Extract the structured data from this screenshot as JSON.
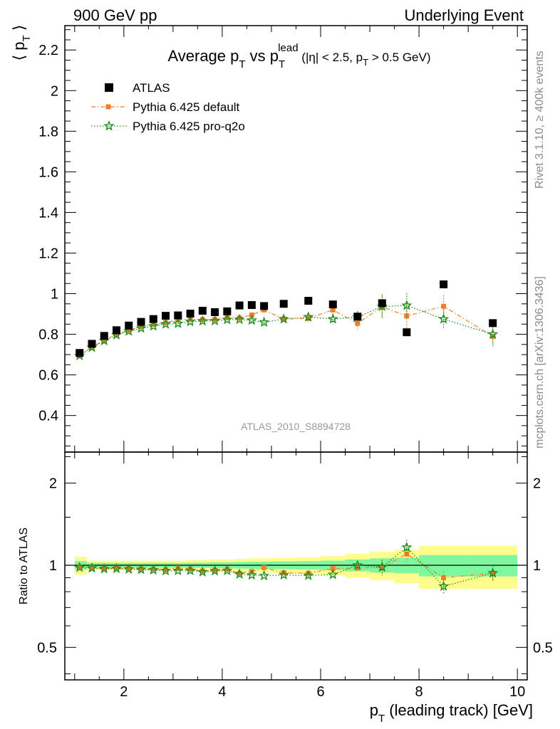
{
  "header": {
    "left": "900 GeV pp",
    "right": "Underlying Event"
  },
  "side_labels": {
    "rivet": "Rivet 3.1.10, ≥ 400k events",
    "mcplots": "mcplots.cern.ch [arXiv:1306.3436]"
  },
  "analysis_id": "ATLAS_2010_S8894728",
  "colors": {
    "atlas": "#000000",
    "default": "#f07f2d",
    "proq2o": "#1e8c1e",
    "band_inner": "#7ef79f",
    "band_outer": "#fffc8e"
  },
  "chart_data": [
    {
      "type": "scatter",
      "title_parts": {
        "pre": "Average p",
        "sub1": "T",
        "mid": " vs p",
        "sub2": "T",
        "sup2": "lead",
        "cut": " (|η| < 2.5, p",
        "cut_sub": "T",
        "cut_post": " > 0.5 GeV)"
      },
      "ylabel": {
        "pre": "⟨ p",
        "sub": "T",
        "post": " ⟩"
      },
      "xlim": [
        0.8,
        10.2
      ],
      "ylim": [
        0.22,
        2.32
      ],
      "yticks": [
        0.4,
        0.6,
        0.8,
        1,
        1.2,
        1.4,
        1.6,
        1.8,
        2,
        2.2
      ],
      "ytick_labels": [
        "0.4",
        "0.6",
        "0.8",
        "1",
        "1.2",
        "1.4",
        "1.6",
        "1.8",
        "2",
        "2.2"
      ],
      "legend_position": "top-left",
      "x": [
        1.1,
        1.35,
        1.6,
        1.85,
        2.1,
        2.35,
        2.6,
        2.85,
        3.1,
        3.35,
        3.6,
        3.85,
        4.1,
        4.35,
        4.6,
        4.85,
        5.25,
        5.75,
        6.25,
        6.75,
        7.25,
        7.75,
        8.5,
        9.5
      ],
      "series": [
        {
          "name": "ATLAS",
          "marker": "square",
          "values": [
            0.708,
            0.753,
            0.792,
            0.82,
            0.843,
            0.861,
            0.875,
            0.891,
            0.893,
            0.902,
            0.916,
            0.909,
            0.913,
            0.942,
            0.944,
            0.939,
            0.95,
            0.965,
            0.947,
            0.887,
            0.953,
            0.81,
            1.046,
            0.855
          ]
        },
        {
          "name": "Pythia 6.425 default",
          "marker": "square-small",
          "values": [
            0.698,
            0.738,
            0.77,
            0.8,
            0.82,
            0.837,
            0.849,
            0.857,
            0.872,
            0.874,
            0.872,
            0.872,
            0.882,
            0.88,
            0.895,
            0.92,
            0.875,
            0.878,
            0.92,
            0.854,
            0.935,
            0.89,
            0.938,
            0.79
          ],
          "errors": [
            0.003,
            0.003,
            0.003,
            0.003,
            0.004,
            0.004,
            0.004,
            0.004,
            0.005,
            0.005,
            0.005,
            0.006,
            0.006,
            0.007,
            0.008,
            0.009,
            0.01,
            0.015,
            0.025,
            0.03,
            0.055,
            0.06,
            0.055,
            0.055
          ]
        },
        {
          "name": "Pythia 6.425 pro-q2o",
          "marker": "star",
          "values": [
            0.695,
            0.735,
            0.768,
            0.797,
            0.815,
            0.83,
            0.84,
            0.85,
            0.853,
            0.862,
            0.865,
            0.866,
            0.872,
            0.873,
            0.869,
            0.859,
            0.875,
            0.885,
            0.875,
            0.885,
            0.937,
            0.942,
            0.875,
            0.8
          ],
          "errors": [
            0.003,
            0.003,
            0.003,
            0.003,
            0.004,
            0.004,
            0.004,
            0.004,
            0.005,
            0.005,
            0.005,
            0.006,
            0.006,
            0.007,
            0.008,
            0.009,
            0.01,
            0.015,
            0.025,
            0.03,
            0.06,
            0.06,
            0.05,
            0.05
          ]
        }
      ]
    },
    {
      "type": "scatter",
      "ylabel": "Ratio to ATLAS",
      "xlabel": {
        "pre": "p",
        "sub": "T",
        "post": " (leading track) [GeV]"
      },
      "xlim": [
        0.8,
        10.2
      ],
      "ylim": [
        0.38,
        2.6
      ],
      "scale": "log",
      "yticks": [
        0.5,
        1,
        2
      ],
      "ytick_labels": [
        "0.5",
        "1",
        "2"
      ],
      "xticks": [
        2,
        4,
        6,
        8,
        10
      ],
      "xtick_labels": [
        "2",
        "4",
        "6",
        "8",
        "10"
      ],
      "x_edges": [
        1.0,
        1.25,
        1.5,
        1.75,
        2.0,
        2.25,
        2.5,
        2.75,
        3.0,
        3.25,
        3.5,
        3.75,
        4.0,
        4.25,
        4.5,
        4.75,
        5.0,
        5.5,
        6.0,
        6.5,
        7.0,
        7.5,
        8.0,
        9.0,
        10.0
      ],
      "band_inner": [
        0.035,
        0.02,
        0.02,
        0.02,
        0.02,
        0.02,
        0.02,
        0.02,
        0.02,
        0.022,
        0.022,
        0.025,
        0.025,
        0.028,
        0.03,
        0.03,
        0.033,
        0.035,
        0.04,
        0.05,
        0.06,
        0.065,
        0.09,
        0.09
      ],
      "band_outer": [
        0.075,
        0.04,
        0.04,
        0.04,
        0.04,
        0.04,
        0.04,
        0.04,
        0.04,
        0.045,
        0.045,
        0.05,
        0.05,
        0.055,
        0.06,
        0.06,
        0.065,
        0.07,
        0.08,
        0.1,
        0.12,
        0.14,
        0.18,
        0.18
      ],
      "series": [
        {
          "name": "Pythia 6.425 default",
          "values": [
            0.987,
            0.98,
            0.975,
            0.974,
            0.972,
            0.969,
            0.969,
            0.963,
            0.978,
            0.968,
            0.952,
            0.959,
            0.966,
            0.934,
            0.948,
            0.98,
            0.938,
            0.935,
            0.972,
            0.978,
            0.98,
            1.1,
            0.9,
            0.935
          ],
          "errors": [
            0.004,
            0.004,
            0.004,
            0.004,
            0.005,
            0.005,
            0.005,
            0.005,
            0.006,
            0.006,
            0.006,
            0.007,
            0.007,
            0.008,
            0.009,
            0.01,
            0.011,
            0.016,
            0.026,
            0.035,
            0.06,
            0.07,
            0.055,
            0.065
          ]
        },
        {
          "name": "Pythia 6.425 pro-q2o",
          "values": [
            0.982,
            0.976,
            0.97,
            0.972,
            0.967,
            0.964,
            0.96,
            0.954,
            0.955,
            0.956,
            0.944,
            0.953,
            0.955,
            0.927,
            0.92,
            0.915,
            0.921,
            0.917,
            0.924,
            1.0,
            0.983,
            1.163,
            0.837,
            0.936
          ],
          "errors": [
            0.004,
            0.004,
            0.004,
            0.004,
            0.005,
            0.005,
            0.005,
            0.005,
            0.006,
            0.006,
            0.006,
            0.007,
            0.007,
            0.008,
            0.009,
            0.01,
            0.011,
            0.016,
            0.026,
            0.035,
            0.065,
            0.075,
            0.05,
            0.06
          ]
        }
      ]
    }
  ]
}
